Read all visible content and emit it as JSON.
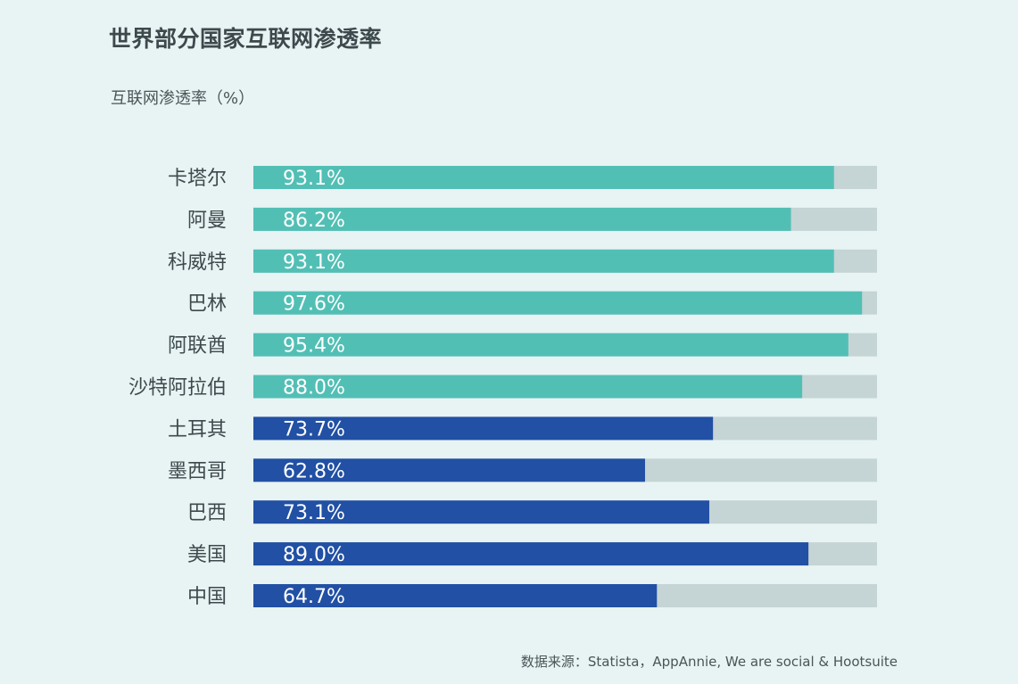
{
  "title": "世界部分国家互联网渗透率",
  "subtitle": "互联网渗透率（%）",
  "source": "数据来源：Statista，AppAnnie, We are social & Hootsuite",
  "colors": {
    "background": "#e8f3f3",
    "group_a": "#52bfb5",
    "group_b": "#2150a4",
    "track": "#c5d4d4",
    "label_text": "#ffffff",
    "category_text": "#3d4a4d"
  },
  "chart_data": {
    "type": "bar",
    "orientation": "horizontal",
    "title": "世界部分国家互联网渗透率",
    "xlabel": "",
    "ylabel": "互联网渗透率（%）",
    "xlim": [
      0,
      100
    ],
    "grid": false,
    "categories": [
      "卡塔尔",
      "阿曼",
      "科威特",
      "巴林",
      "阿联酋",
      "沙特阿拉伯",
      "土耳其",
      "墨西哥",
      "巴西",
      "美国",
      "中国"
    ],
    "values": [
      93.1,
      86.2,
      93.1,
      97.6,
      95.4,
      88.0,
      73.7,
      62.8,
      73.1,
      89.0,
      64.7
    ],
    "value_labels": [
      "93.1%",
      "86.2%",
      "93.1%",
      "97.6%",
      "95.4%",
      "88.0%",
      "73.7%",
      "62.8%",
      "73.1%",
      "89.0%",
      "64.7%"
    ],
    "bar_color_groups": [
      "a",
      "a",
      "a",
      "a",
      "a",
      "a",
      "b",
      "b",
      "b",
      "b",
      "b"
    ]
  }
}
